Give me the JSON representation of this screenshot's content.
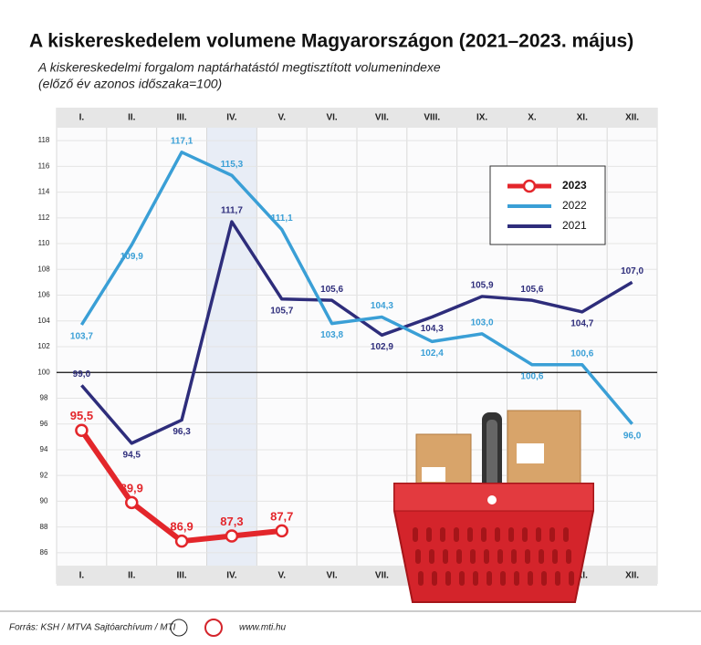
{
  "chart_data": {
    "type": "line",
    "title": "A kiskereskedelem volumene Magyarországon (2021–2023. május)",
    "subtitle": [
      "A kiskereskedelmi forgalom naptárhatástól megtisztított volumenindexe",
      "(előző év azonos időszaka=100)"
    ],
    "categories": [
      "I.",
      "II.",
      "III.",
      "IV.",
      "V.",
      "VI.",
      "VII.",
      "VIII.",
      "IX.",
      "X.",
      "XI.",
      "XII."
    ],
    "series": [
      {
        "name": "2023",
        "color": "#e3262b",
        "markers": true,
        "values": [
          95.5,
          89.9,
          86.9,
          87.3,
          87.7,
          null,
          null,
          null,
          null,
          null,
          null,
          null
        ],
        "value_labels": [
          "95,5",
          "89,9",
          "86,9",
          "87,3",
          "87,7",
          null,
          null,
          null,
          null,
          null,
          null,
          null
        ]
      },
      {
        "name": "2022",
        "color": "#3a9fd6",
        "markers": false,
        "values": [
          103.7,
          109.9,
          117.1,
          115.3,
          111.1,
          103.8,
          104.3,
          102.4,
          103.0,
          100.6,
          100.6,
          96.0
        ],
        "value_labels": [
          "103,7",
          "109,9",
          "117,1",
          "115,3",
          "111,1",
          "103,8",
          "104,3",
          "102,4",
          "103,0",
          "100,6",
          "100,6",
          "96,0"
        ]
      },
      {
        "name": "2021",
        "color": "#2e2d7b",
        "markers": false,
        "values": [
          99.0,
          94.5,
          96.3,
          111.7,
          105.7,
          105.6,
          102.9,
          104.3,
          105.9,
          105.6,
          104.7,
          107.0
        ],
        "value_labels": [
          "99,0",
          "94,5",
          "96,3",
          "111,7",
          "105,7",
          "105,6",
          "102,9",
          "104,3",
          "105,9",
          "105,6",
          "104,7",
          "107,0"
        ]
      }
    ],
    "ylim": [
      85,
      119
    ],
    "yticks": [
      86,
      88,
      90,
      92,
      94,
      96,
      98,
      100,
      102,
      104,
      106,
      108,
      110,
      112,
      114,
      116,
      118
    ],
    "grid": true,
    "reference_line": 100,
    "highlight_category_index": 3,
    "legend_position": "upper right",
    "source": "Forrás: KSH / MTVA Sajtóarchívum / MTI",
    "website": "www.mti.hu"
  }
}
